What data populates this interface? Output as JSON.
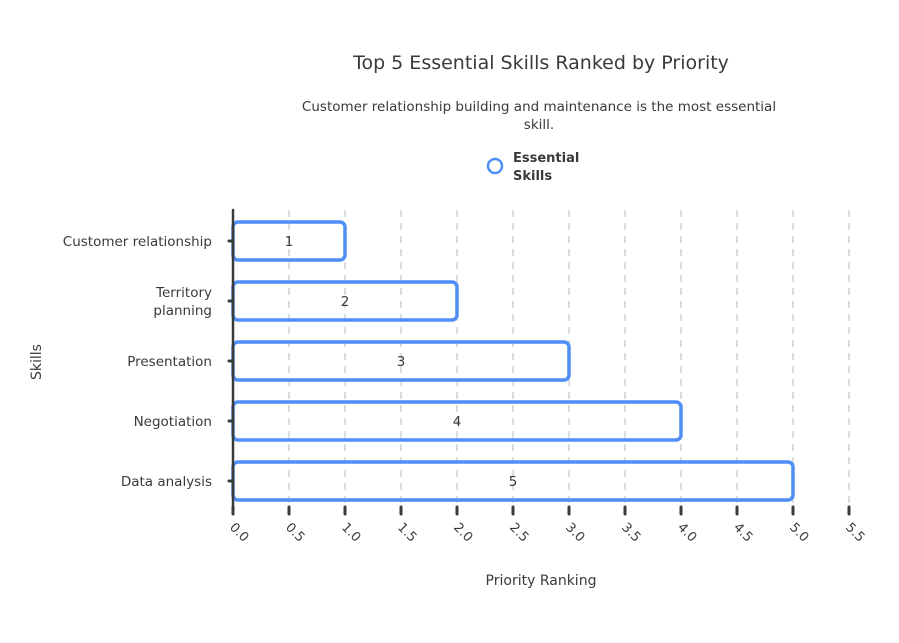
{
  "chart_data": {
    "type": "bar",
    "orientation": "horizontal",
    "title": "Top 5 Essential Skills Ranked by Priority",
    "subtitle_lines": [
      "Customer relationship building and maintenance is the most essential",
      "skill."
    ],
    "xlabel": "Priority Ranking",
    "ylabel": "Skills",
    "categories": [
      [
        "Customer relationship"
      ],
      [
        "Territory",
        "planning"
      ],
      [
        "Presentation"
      ],
      [
        "Negotiation"
      ],
      [
        "Data analysis"
      ]
    ],
    "series": [
      {
        "name": "Essential Skills",
        "values": [
          1,
          2,
          3,
          4,
          5
        ],
        "color": "#4f8ef7"
      }
    ],
    "legend_lines": [
      "Essential",
      "Skills"
    ],
    "legend_placement": "top",
    "xlim": [
      0,
      5.5
    ],
    "xticks": [
      "0.0",
      "0.5",
      "1.0",
      "1.5",
      "2.0",
      "2.5",
      "3.0",
      "3.5",
      "4.0",
      "4.5",
      "5.0",
      "5.5"
    ],
    "grid": true,
    "data_labels": true,
    "style": "hand-drawn"
  }
}
